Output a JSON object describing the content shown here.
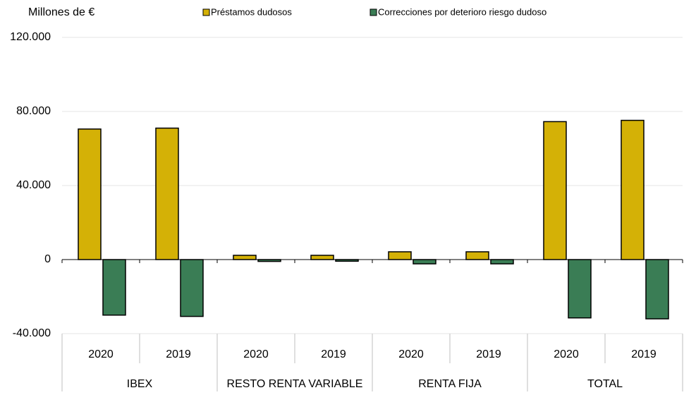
{
  "chart_data": {
    "type": "bar",
    "title": "Millones de €",
    "categories": [
      "2020",
      "2019",
      "2020",
      "2019",
      "2020",
      "2019",
      "2020",
      "2019"
    ],
    "groups": [
      "IBEX",
      "RESTO RENTA VARIABLE",
      "RENTA FIJA",
      "TOTAL"
    ],
    "series": [
      {
        "name": "Préstamos dudosos",
        "color": "#d4b106",
        "values": [
          70500,
          71000,
          2300,
          2300,
          4200,
          4200,
          74500,
          75200
        ]
      },
      {
        "name": "Correcciones por deterioro riesgo dudoso",
        "color": "#3a7d55",
        "values": [
          -30000,
          -30700,
          -1000,
          -900,
          -2300,
          -2300,
          -31500,
          -32000
        ]
      }
    ],
    "ylim": [
      -40000,
      120000
    ],
    "yticks": [
      {
        "value": -40000,
        "label": "-40.000"
      },
      0,
      {
        "value": 40000,
        "label": "40.000"
      },
      {
        "value": 80000,
        "label": "80.000"
      },
      {
        "value": 120000,
        "label": "120.000"
      }
    ],
    "grid": true,
    "legend": "top"
  }
}
